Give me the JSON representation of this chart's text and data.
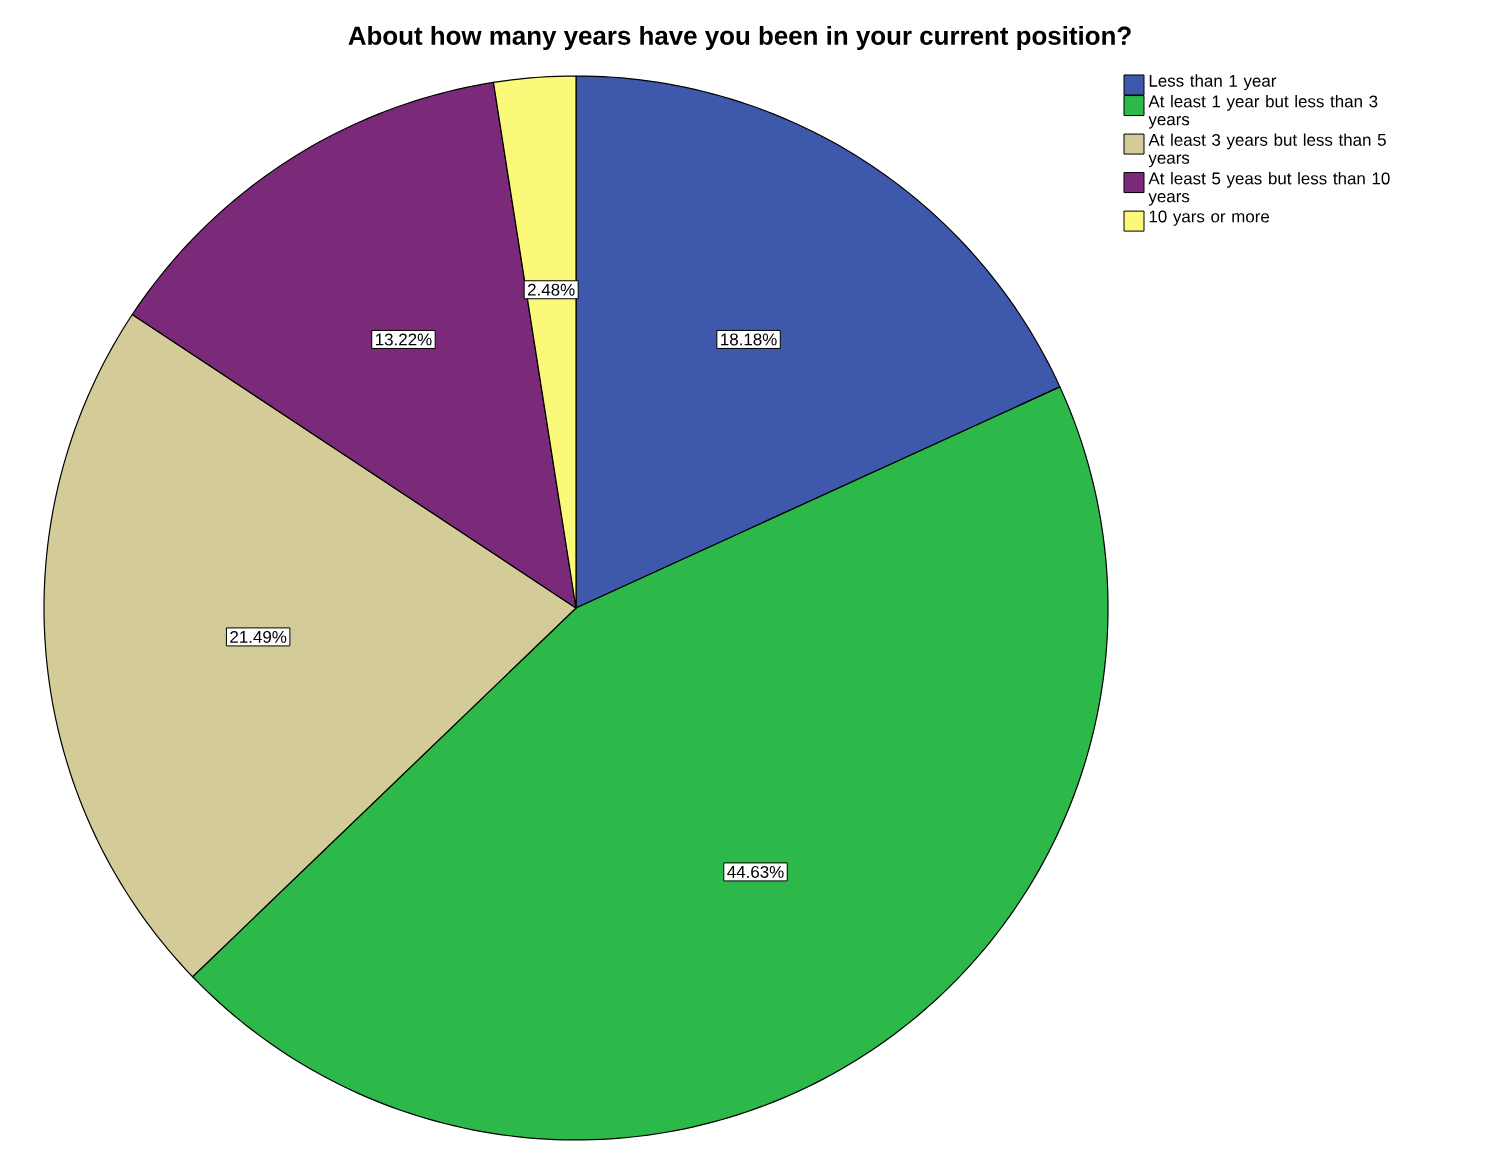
{
  "chart_data": {
    "type": "pie",
    "title": "About how many years have you been in your current position?",
    "categories": [
      "Less than 1 year",
      "At least 1 year but less than 3 years",
      "At least 3 years but less than 5 years",
      "At least 5 yeas but less than 10 years",
      "10 yars or more"
    ],
    "values": [
      18.18,
      44.63,
      21.49,
      13.22,
      2.48
    ],
    "value_labels": [
      "18.18%",
      "44.63%",
      "21.49%",
      "13.22%",
      "2.48%"
    ],
    "colors": [
      "#3e58ac",
      "#2db84a",
      "#d4cc98",
      "#7b2a7a",
      "#fbf979"
    ],
    "legend": "top right"
  }
}
